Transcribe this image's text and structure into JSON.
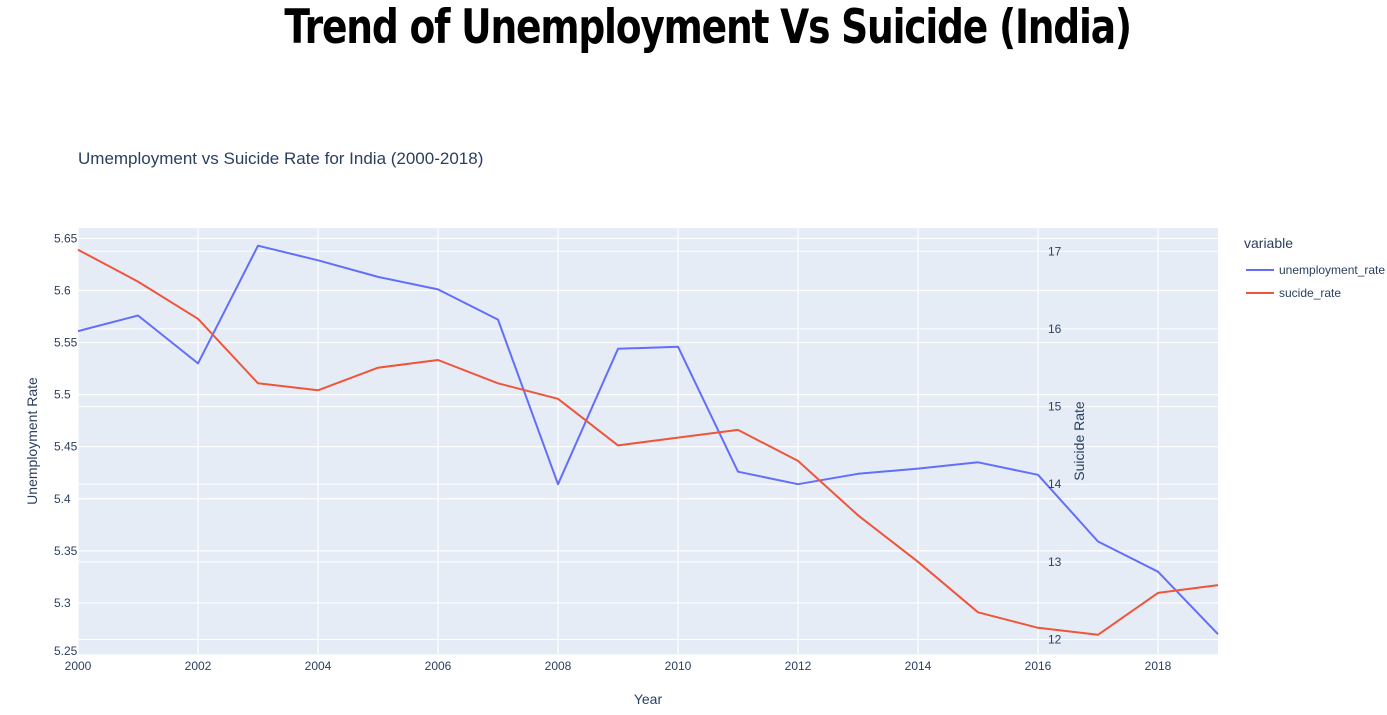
{
  "page": {
    "heading": "Trend of Unemployment Vs Suicide (India)"
  },
  "chart_data": {
    "type": "line",
    "title": "Umemployment vs Suicide Rate for India (2000-2018)",
    "xlabel": "Year",
    "ylabel": "Unemployment Rate",
    "y2label": "Suicide Rate",
    "xlim": [
      2000,
      2019
    ],
    "ylim": [
      5.25,
      5.66
    ],
    "y2lim": [
      11.8,
      17.3
    ],
    "x_ticks": [
      2000,
      2002,
      2004,
      2006,
      2008,
      2010,
      2012,
      2014,
      2016,
      2018
    ],
    "y_ticks": [
      5.25,
      5.3,
      5.35,
      5.4,
      5.45,
      5.5,
      5.55,
      5.6,
      5.65
    ],
    "y_tick_labels": [
      "5.25",
      "5.3",
      "5.35",
      "5.4",
      "5.45",
      "5.5",
      "5.55",
      "5.6",
      "5.65"
    ],
    "y2_ticks": [
      12,
      13,
      14,
      15,
      16,
      17
    ],
    "grid": true,
    "legend_title": "variable",
    "legend_position": "right",
    "x": [
      2000,
      2001,
      2002,
      2003,
      2004,
      2005,
      2006,
      2007,
      2008,
      2009,
      2010,
      2011,
      2012,
      2013,
      2014,
      2015,
      2016,
      2017,
      2018,
      2019
    ],
    "series": [
      {
        "name": "unemployment_rate",
        "axis": "y",
        "color": "#636efa",
        "values": [
          5.561,
          5.576,
          5.53,
          5.643,
          5.629,
          5.613,
          5.601,
          5.572,
          5.414,
          5.544,
          5.546,
          5.426,
          5.414,
          5.424,
          5.429,
          5.435,
          5.423,
          5.359,
          5.33,
          5.27
        ]
      },
      {
        "name": "sucide_rate",
        "axis": "y2",
        "color": "#ef553b",
        "values": [
          17.02,
          16.61,
          16.13,
          15.3,
          15.21,
          15.5,
          15.6,
          15.3,
          15.1,
          14.5,
          14.6,
          14.7,
          14.3,
          13.6,
          13.0,
          12.35,
          12.15,
          12.06,
          12.6,
          12.7
        ]
      }
    ]
  },
  "colors": {
    "plot_bg": "#e5ecf6",
    "grid": "#ffffff",
    "text": "#2a3f5f"
  }
}
